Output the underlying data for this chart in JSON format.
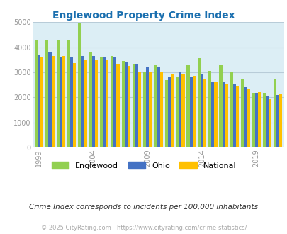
{
  "title": "Englewood Property Crime Index",
  "title_color": "#1a6faf",
  "subtitle": "Crime Index corresponds to incidents per 100,000 inhabitants",
  "copyright": "© 2025 CityRating.com - https://www.cityrating.com/crime-statistics/",
  "ylim": [
    0,
    5000
  ],
  "yticks": [
    0,
    1000,
    2000,
    3000,
    4000,
    5000
  ],
  "xtick_years": [
    1999,
    2004,
    2009,
    2014,
    2019
  ],
  "background_color": "#dceef5",
  "outer_background": "#ffffff",
  "years": [
    1999,
    2000,
    2001,
    2002,
    2003,
    2004,
    2005,
    2006,
    2007,
    2008,
    2009,
    2010,
    2011,
    2012,
    2013,
    2014,
    2015,
    2016,
    2017,
    2018,
    2019,
    2020,
    2021
  ],
  "englewood": [
    4270,
    4310,
    4310,
    4310,
    4940,
    3830,
    3600,
    3640,
    3450,
    3330,
    3020,
    3310,
    2700,
    2830,
    3290,
    3560,
    3060,
    3290,
    3010,
    2750,
    2190,
    2190,
    2720
  ],
  "ohio": [
    3670,
    3820,
    3620,
    3630,
    3640,
    3640,
    3630,
    3630,
    3420,
    3350,
    3210,
    3230,
    2810,
    3040,
    2820,
    2930,
    2610,
    2590,
    2560,
    2400,
    2190,
    2060,
    2080
  ],
  "national": [
    3600,
    3660,
    3640,
    3360,
    3500,
    3490,
    3470,
    3330,
    3240,
    3040,
    3010,
    2990,
    2940,
    2920,
    2870,
    2710,
    2620,
    2510,
    2450,
    2360,
    2200,
    1960,
    2110
  ],
  "englewood_color": "#92d050",
  "ohio_color": "#4472c4",
  "national_color": "#ffc000",
  "bar_width": 0.27,
  "legend_labels": [
    "Englewood",
    "Ohio",
    "National"
  ],
  "grid_color": "#b8ccd8",
  "tick_color": "#999999"
}
